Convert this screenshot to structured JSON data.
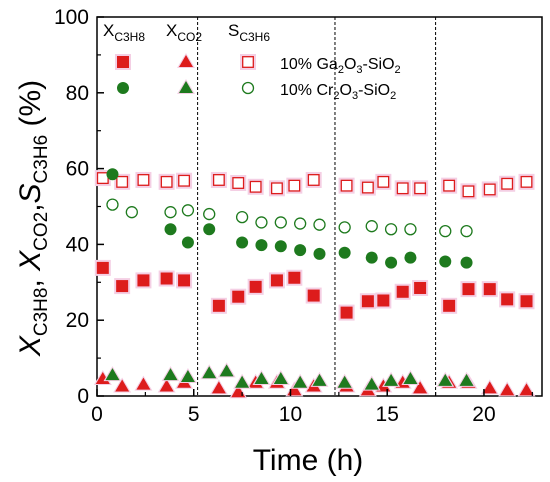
{
  "chart_data": {
    "type": "scatter",
    "xlabel": "Time (h)",
    "ylabel_parts": {
      "X1": "X",
      "sub1": "C3H8",
      "c1": ", ",
      "X2": "X",
      "sub2": "CO2",
      "c2": ",",
      "S": "S",
      "sub3": "C3H6",
      "unit": " (%)"
    },
    "xlim": [
      0,
      23
    ],
    "ylim": [
      0,
      100
    ],
    "xticks": [
      "0",
      "5",
      "10",
      "15",
      "20"
    ],
    "yticks": [
      "0",
      "20",
      "40",
      "60",
      "80",
      "100"
    ],
    "xtick_values": [
      0,
      5,
      10,
      15,
      20
    ],
    "ytick_values": [
      0,
      20,
      40,
      60,
      80,
      100
    ],
    "regeneration_lines_x": [
      5.2,
      12.3,
      17.5
    ],
    "legend": {
      "position": "top-left",
      "headers": [
        {
          "main": "X",
          "sub": "C3H8"
        },
        {
          "main": "X",
          "sub": "CO2"
        },
        {
          "main": "S",
          "sub": "C3H6"
        }
      ],
      "rows": [
        {
          "label_a": "10% Ga",
          "sub_a": "2",
          "label_b": "O",
          "sub_b": "3",
          "label_c": "-SiO",
          "sub_c": "2"
        },
        {
          "label_a": "10% Cr",
          "sub_a": "2",
          "label_b": "O",
          "sub_b": "3",
          "label_c": "-SiO",
          "sub_c": "2"
        }
      ]
    },
    "colors": {
      "ga": "#dd1c1c",
      "cr": "#1e7a1e",
      "highlight": "#f4cfe4"
    },
    "series": [
      {
        "name": "X C3H8 Ga2O3-SiO2",
        "marker": "square-filled",
        "color": "#dd1c1c",
        "points": [
          [
            0.3,
            33.8
          ],
          [
            1.3,
            29.0
          ],
          [
            2.4,
            30.5
          ],
          [
            3.6,
            31.0
          ],
          [
            4.5,
            30.5
          ],
          [
            6.3,
            23.8
          ],
          [
            7.3,
            26.2
          ],
          [
            8.2,
            28.8
          ],
          [
            9.3,
            30.5
          ],
          [
            10.2,
            31.2
          ],
          [
            11.2,
            26.5
          ],
          [
            12.9,
            22.0
          ],
          [
            14.0,
            25.0
          ],
          [
            14.8,
            25.2
          ],
          [
            15.8,
            27.5
          ],
          [
            16.7,
            28.5
          ],
          [
            18.2,
            23.8
          ],
          [
            19.2,
            28.2
          ],
          [
            20.3,
            28.2
          ],
          [
            21.2,
            25.5
          ],
          [
            22.2,
            25.0
          ]
        ]
      },
      {
        "name": "X CO2 Ga2O3-SiO2",
        "marker": "triangle-filled",
        "color": "#dd1c1c",
        "points": [
          [
            0.3,
            4.5
          ],
          [
            1.3,
            2.5
          ],
          [
            2.4,
            3.0
          ],
          [
            3.6,
            2.5
          ],
          [
            4.5,
            3.5
          ],
          [
            6.3,
            2.0
          ],
          [
            7.3,
            1.0
          ],
          [
            8.2,
            3.5
          ],
          [
            9.3,
            3.5
          ],
          [
            10.2,
            1.5
          ],
          [
            11.2,
            2.5
          ],
          [
            12.9,
            2.5
          ],
          [
            14.0,
            1.5
          ],
          [
            14.8,
            2.5
          ],
          [
            15.8,
            3.5
          ],
          [
            16.7,
            2.0
          ],
          [
            18.2,
            3.5
          ],
          [
            19.2,
            3.5
          ],
          [
            20.3,
            2.0
          ],
          [
            21.2,
            1.5
          ],
          [
            22.2,
            1.5
          ]
        ]
      },
      {
        "name": "S C3H6 Ga2O3-SiO2",
        "marker": "square-open",
        "color": "#dd1c1c",
        "points": [
          [
            0.3,
            57.5
          ],
          [
            1.3,
            56.5
          ],
          [
            2.4,
            57.0
          ],
          [
            3.6,
            56.5
          ],
          [
            4.5,
            56.8
          ],
          [
            6.3,
            57.0
          ],
          [
            7.3,
            56.2
          ],
          [
            8.2,
            55.2
          ],
          [
            9.3,
            54.8
          ],
          [
            10.2,
            55.5
          ],
          [
            11.2,
            57.0
          ],
          [
            12.9,
            55.5
          ],
          [
            14.0,
            55.0
          ],
          [
            14.8,
            56.5
          ],
          [
            15.8,
            54.8
          ],
          [
            16.7,
            54.8
          ],
          [
            18.2,
            55.5
          ],
          [
            19.2,
            54.0
          ],
          [
            20.3,
            54.5
          ],
          [
            21.2,
            56.0
          ],
          [
            22.2,
            56.5
          ]
        ]
      },
      {
        "name": "X C3H8 Cr2O3-SiO2",
        "marker": "circle-filled",
        "color": "#1e7a1e",
        "points": [
          [
            0.8,
            58.5
          ],
          [
            3.8,
            44.0
          ],
          [
            4.7,
            40.5
          ],
          [
            5.8,
            44.0
          ],
          [
            7.5,
            40.5
          ],
          [
            8.5,
            39.8
          ],
          [
            9.5,
            39.5
          ],
          [
            10.5,
            38.5
          ],
          [
            11.5,
            37.5
          ],
          [
            12.8,
            37.8
          ],
          [
            14.2,
            36.5
          ],
          [
            15.2,
            35.2
          ],
          [
            16.2,
            36.5
          ],
          [
            18.0,
            35.5
          ],
          [
            19.1,
            35.2
          ]
        ]
      },
      {
        "name": "X CO2 Cr2O3-SiO2",
        "marker": "triangle-filled",
        "color": "#1e7a1e",
        "points": [
          [
            0.8,
            5.5
          ],
          [
            3.8,
            5.5
          ],
          [
            4.7,
            5.0
          ],
          [
            5.8,
            6.0
          ],
          [
            6.7,
            6.5
          ],
          [
            7.5,
            3.5
          ],
          [
            8.5,
            4.5
          ],
          [
            9.5,
            4.5
          ],
          [
            10.5,
            3.5
          ],
          [
            11.5,
            4.0
          ],
          [
            12.8,
            3.5
          ],
          [
            14.2,
            3.0
          ],
          [
            15.2,
            4.0
          ],
          [
            16.2,
            4.5
          ],
          [
            18.0,
            4.0
          ],
          [
            19.1,
            4.0
          ]
        ]
      },
      {
        "name": "S C3H6 Cr2O3-SiO2",
        "marker": "circle-open",
        "color": "#1e7a1e",
        "points": [
          [
            0.8,
            50.5
          ],
          [
            1.8,
            48.5
          ],
          [
            3.8,
            48.5
          ],
          [
            4.7,
            49.0
          ],
          [
            5.8,
            48.0
          ],
          [
            7.5,
            47.2
          ],
          [
            8.5,
            45.8
          ],
          [
            9.5,
            45.8
          ],
          [
            10.5,
            45.5
          ],
          [
            11.5,
            45.2
          ],
          [
            12.8,
            44.5
          ],
          [
            14.2,
            44.8
          ],
          [
            15.2,
            44.0
          ],
          [
            16.2,
            44.0
          ],
          [
            18.0,
            43.5
          ],
          [
            19.1,
            43.5
          ]
        ]
      }
    ]
  }
}
